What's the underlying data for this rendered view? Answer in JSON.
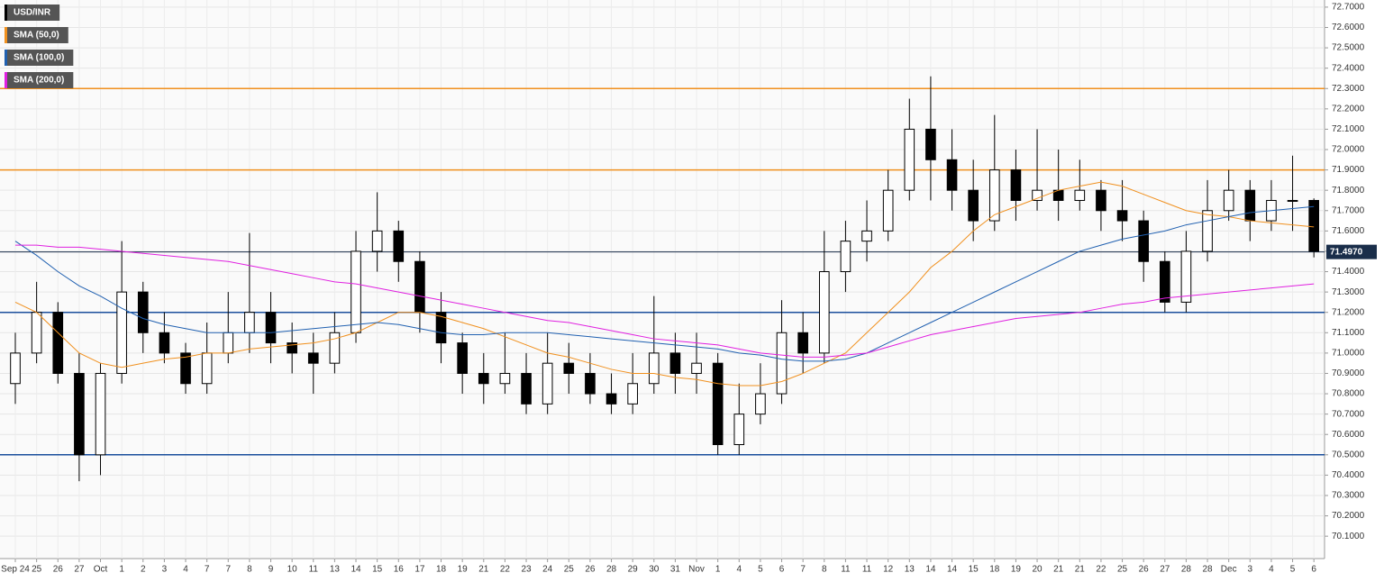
{
  "chart_data": {
    "type": "candlestick",
    "legend": [
      {
        "label": "USD/INR",
        "color": "#000000"
      },
      {
        "label": "SMA (50,0)",
        "color": "#f0901e"
      },
      {
        "label": "SMA (100,0)",
        "color": "#2060b0"
      },
      {
        "label": "SMA (200,0)",
        "color": "#e020e0"
      }
    ],
    "xticks": [
      {
        "value": 0,
        "label": "Sep 24"
      },
      {
        "value": 1,
        "label": "25"
      },
      {
        "value": 2,
        "label": "26"
      },
      {
        "value": 3,
        "label": "27"
      },
      {
        "value": 4,
        "label": "Oct"
      },
      {
        "value": 5,
        "label": "1"
      },
      {
        "value": 6,
        "label": "2"
      },
      {
        "value": 7,
        "label": "3"
      },
      {
        "value": 8,
        "label": "4"
      },
      {
        "value": 9,
        "label": "7"
      },
      {
        "value": 10,
        "label": "7"
      },
      {
        "value": 11,
        "label": "8"
      },
      {
        "value": 12,
        "label": "9"
      },
      {
        "value": 13,
        "label": "10"
      },
      {
        "value": 14,
        "label": "11"
      },
      {
        "value": 15,
        "label": "13"
      },
      {
        "value": 16,
        "label": "14"
      },
      {
        "value": 17,
        "label": "15"
      },
      {
        "value": 18,
        "label": "16"
      },
      {
        "value": 19,
        "label": "17"
      },
      {
        "value": 20,
        "label": "18"
      },
      {
        "value": 21,
        "label": "19"
      },
      {
        "value": 22,
        "label": "21"
      },
      {
        "value": 23,
        "label": "22"
      },
      {
        "value": 24,
        "label": "23"
      },
      {
        "value": 25,
        "label": "24"
      },
      {
        "value": 26,
        "label": "25"
      },
      {
        "value": 27,
        "label": "26"
      },
      {
        "value": 28,
        "label": "28"
      },
      {
        "value": 29,
        "label": "29"
      },
      {
        "value": 30,
        "label": "30"
      },
      {
        "value": 31,
        "label": "31"
      },
      {
        "value": 32,
        "label": "Nov"
      },
      {
        "value": 33,
        "label": "1"
      },
      {
        "value": 34,
        "label": "4"
      },
      {
        "value": 35,
        "label": "5"
      },
      {
        "value": 36,
        "label": "6"
      },
      {
        "value": 37,
        "label": "7"
      },
      {
        "value": 38,
        "label": "8"
      },
      {
        "value": 39,
        "label": "11"
      },
      {
        "value": 40,
        "label": "11"
      },
      {
        "value": 41,
        "label": "12"
      },
      {
        "value": 42,
        "label": "13"
      },
      {
        "value": 43,
        "label": "14"
      },
      {
        "value": 44,
        "label": "14"
      },
      {
        "value": 45,
        "label": "15"
      },
      {
        "value": 46,
        "label": "18"
      },
      {
        "value": 47,
        "label": "19"
      },
      {
        "value": 48,
        "label": "20"
      },
      {
        "value": 49,
        "label": "21"
      },
      {
        "value": 50,
        "label": "21"
      },
      {
        "value": 51,
        "label": "22"
      },
      {
        "value": 52,
        "label": "25"
      },
      {
        "value": 53,
        "label": "26"
      },
      {
        "value": 54,
        "label": "27"
      },
      {
        "value": 55,
        "label": "28"
      },
      {
        "value": 56,
        "label": "28"
      },
      {
        "value": 57,
        "label": "Dec"
      },
      {
        "value": 58,
        "label": "3"
      },
      {
        "value": 59,
        "label": "4"
      },
      {
        "value": 60,
        "label": "5"
      },
      {
        "value": 61,
        "label": "6"
      }
    ],
    "xlim": [
      -0.72,
      61.5
    ],
    "ylim": [
      69.99,
      72.735
    ],
    "yticks": [
      {
        "value": 72.7,
        "label": "72.7000"
      },
      {
        "value": 72.6,
        "label": "72.6000"
      },
      {
        "value": 72.5,
        "label": "72.5000"
      },
      {
        "value": 72.4,
        "label": "72.4000"
      },
      {
        "value": 72.3,
        "label": "72.3000"
      },
      {
        "value": 72.2,
        "label": "72.2000"
      },
      {
        "value": 72.1,
        "label": "72.1000"
      },
      {
        "value": 72.0,
        "label": "72.0000"
      },
      {
        "value": 71.9,
        "label": "71.9000"
      },
      {
        "value": 71.8,
        "label": "71.8000"
      },
      {
        "value": 71.7,
        "label": "71.7000"
      },
      {
        "value": 71.6,
        "label": "71.6000"
      },
      {
        "value": 71.5,
        "label": "71.5000"
      },
      {
        "value": 71.4,
        "label": "71.4000"
      },
      {
        "value": 71.3,
        "label": "71.3000"
      },
      {
        "value": 71.2,
        "label": "71.2000"
      },
      {
        "value": 71.1,
        "label": "71.1000"
      },
      {
        "value": 71.0,
        "label": "71.0000"
      },
      {
        "value": 70.9,
        "label": "70.9000"
      },
      {
        "value": 70.8,
        "label": "70.8000"
      },
      {
        "value": 70.7,
        "label": "70.7000"
      },
      {
        "value": 70.6,
        "label": "70.6000"
      },
      {
        "value": 70.5,
        "label": "70.5000"
      },
      {
        "value": 70.4,
        "label": "70.4000"
      },
      {
        "value": 70.3,
        "label": "70.3000"
      },
      {
        "value": 70.2,
        "label": "70.2000"
      },
      {
        "value": 70.1,
        "label": "70.1000"
      }
    ],
    "grid": true,
    "candles": {
      "open": [
        70.85,
        71.0,
        71.2,
        70.9,
        70.5,
        70.9,
        71.3,
        71.1,
        71.0,
        70.85,
        71.0,
        71.1,
        71.2,
        71.05,
        71.0,
        70.95,
        71.1,
        71.5,
        71.6,
        71.45,
        71.2,
        71.05,
        70.9,
        70.85,
        70.9,
        70.75,
        70.95,
        70.9,
        70.8,
        70.75,
        70.85,
        71.0,
        70.9,
        70.95,
        70.55,
        70.7,
        70.8,
        71.1,
        71.0,
        71.4,
        71.55,
        71.6,
        71.8,
        72.1,
        71.95,
        71.8,
        71.65,
        71.9,
        71.75,
        71.8,
        71.75,
        71.8,
        71.7,
        71.65,
        71.45,
        71.25,
        71.5,
        71.7,
        71.8,
        71.65,
        71.75,
        71.75
      ],
      "high": [
        71.1,
        71.35,
        71.25,
        71.0,
        70.95,
        71.55,
        71.35,
        71.2,
        71.05,
        71.15,
        71.3,
        71.59,
        71.3,
        71.15,
        71.1,
        71.2,
        71.6,
        71.79,
        71.65,
        71.5,
        71.3,
        71.1,
        71.0,
        71.1,
        71.0,
        71.1,
        71.05,
        71.0,
        70.9,
        71.0,
        71.28,
        71.1,
        71.1,
        71.0,
        70.85,
        70.95,
        71.26,
        71.2,
        71.6,
        71.65,
        71.75,
        71.9,
        72.25,
        72.36,
        72.1,
        71.95,
        72.17,
        72.0,
        72.1,
        72.0,
        71.95,
        71.85,
        71.85,
        71.7,
        71.5,
        71.6,
        71.85,
        71.9,
        71.85,
        71.85,
        71.97,
        71.76
      ],
      "low": [
        70.75,
        70.95,
        70.85,
        70.37,
        70.4,
        70.85,
        71.0,
        70.95,
        70.8,
        70.8,
        70.95,
        71.0,
        70.95,
        70.9,
        70.8,
        70.9,
        71.05,
        71.4,
        71.35,
        71.1,
        70.95,
        70.8,
        70.75,
        70.8,
        70.7,
        70.7,
        70.8,
        70.75,
        70.7,
        70.7,
        70.8,
        70.8,
        70.8,
        70.5,
        70.5,
        70.65,
        70.75,
        70.9,
        70.95,
        71.3,
        71.45,
        71.55,
        71.75,
        71.75,
        71.7,
        71.55,
        71.6,
        71.65,
        71.7,
        71.65,
        71.7,
        71.6,
        71.55,
        71.35,
        71.2,
        71.2,
        71.45,
        71.65,
        71.55,
        71.6,
        71.6,
        71.47
      ],
      "close": [
        71.0,
        71.2,
        70.9,
        70.5,
        70.9,
        71.3,
        71.1,
        71.0,
        70.85,
        71.0,
        71.1,
        71.2,
        71.05,
        71.0,
        70.95,
        71.1,
        71.5,
        71.6,
        71.45,
        71.2,
        71.05,
        70.9,
        70.85,
        70.9,
        70.75,
        70.95,
        70.9,
        70.8,
        70.75,
        70.85,
        71.0,
        70.9,
        70.95,
        70.55,
        70.7,
        70.8,
        71.1,
        71.0,
        71.4,
        71.55,
        71.6,
        71.8,
        72.1,
        71.95,
        71.8,
        71.65,
        71.9,
        71.75,
        71.8,
        71.75,
        71.8,
        71.7,
        71.65,
        71.45,
        71.25,
        71.5,
        71.7,
        71.8,
        71.65,
        71.75,
        71.75,
        71.5
      ]
    },
    "series": [
      {
        "name": "SMA (50,0)",
        "color": "#f0901e",
        "values": [
          71.25,
          71.2,
          71.1,
          71.0,
          70.95,
          70.93,
          70.95,
          70.97,
          70.98,
          71.0,
          71.0,
          71.02,
          71.03,
          71.04,
          71.05,
          71.07,
          71.1,
          71.15,
          71.2,
          71.2,
          71.18,
          71.15,
          71.12,
          71.08,
          71.04,
          71.0,
          70.98,
          70.95,
          70.92,
          70.9,
          70.9,
          70.88,
          70.87,
          70.85,
          70.84,
          70.84,
          70.86,
          70.9,
          70.95,
          71.0,
          71.1,
          71.2,
          71.3,
          71.42,
          71.5,
          71.6,
          71.68,
          71.72,
          71.76,
          71.8,
          71.82,
          71.84,
          71.82,
          71.78,
          71.74,
          71.7,
          71.68,
          71.67,
          71.65,
          71.64,
          71.63,
          71.62
        ]
      },
      {
        "name": "SMA (100,0)",
        "color": "#2060b0",
        "values": [
          71.55,
          71.48,
          71.4,
          71.33,
          71.28,
          71.22,
          71.17,
          71.14,
          71.12,
          71.1,
          71.1,
          71.1,
          71.1,
          71.11,
          71.12,
          71.13,
          71.14,
          71.15,
          71.14,
          71.12,
          71.1,
          71.09,
          71.09,
          71.1,
          71.1,
          71.1,
          71.09,
          71.08,
          71.07,
          71.06,
          71.05,
          71.04,
          71.03,
          71.02,
          71.0,
          70.99,
          70.97,
          70.96,
          70.96,
          70.97,
          71.0,
          71.05,
          71.1,
          71.15,
          71.2,
          71.25,
          71.3,
          71.35,
          71.4,
          71.45,
          71.5,
          71.53,
          71.56,
          71.58,
          71.6,
          71.63,
          71.65,
          71.67,
          71.69,
          71.7,
          71.71,
          71.72
        ]
      },
      {
        "name": "SMA (200,0)",
        "color": "#e020e0",
        "values": [
          71.53,
          71.53,
          71.52,
          71.52,
          71.51,
          71.5,
          71.49,
          71.48,
          71.47,
          71.46,
          71.45,
          71.43,
          71.41,
          71.39,
          71.37,
          71.35,
          71.34,
          71.32,
          71.3,
          71.28,
          71.26,
          71.24,
          71.22,
          71.2,
          71.18,
          71.16,
          71.15,
          71.13,
          71.11,
          71.09,
          71.07,
          71.06,
          71.05,
          71.04,
          71.02,
          71.0,
          70.99,
          70.98,
          70.98,
          70.99,
          71.0,
          71.03,
          71.06,
          71.09,
          71.11,
          71.13,
          71.15,
          71.17,
          71.18,
          71.19,
          71.2,
          71.22,
          71.24,
          71.25,
          71.27,
          71.28,
          71.29,
          71.3,
          71.31,
          71.32,
          71.33,
          71.34
        ]
      }
    ],
    "levels": [
      {
        "value": 72.3,
        "color": "#f0901e"
      },
      {
        "value": 71.9,
        "color": "#f0901e"
      },
      {
        "value": 71.2,
        "color": "#1a4f9c"
      },
      {
        "value": 70.5,
        "color": "#1a4f9c"
      }
    ],
    "last_price": {
      "value": 71.497,
      "label": "71.4970",
      "color": "#1a2e4a"
    }
  }
}
